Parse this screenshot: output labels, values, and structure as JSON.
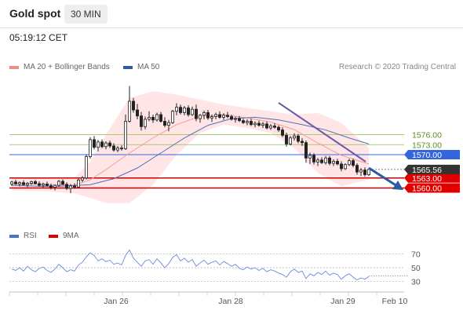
{
  "header": {
    "title": "Gold spot",
    "timeframe": "30 MIN",
    "time": "05:19:12 CET"
  },
  "legend": {
    "price_items": [
      {
        "label": "MA 20 + Bollinger Bands",
        "color": "#f28b86"
      },
      {
        "label": "MA 50",
        "color": "#2f5aa8"
      }
    ],
    "rsi_items": [
      {
        "label": "RSI",
        "color": "#4a74c9"
      },
      {
        "label": "9MA",
        "color": "#e00000"
      }
    ],
    "copyright": "Research © 2020 Trading Central"
  },
  "colors": {
    "support": "#cc0000",
    "pivot": "#3366dd",
    "resistance": "#8fbf4a",
    "current": "#333333",
    "candle": "#222222",
    "arrow": "#2a5aa0",
    "trendline": "#6a5aa8",
    "band": "#ffd0d0",
    "ma20": "#f29f9a",
    "ma50": "#5070b8",
    "rsi": "#6a8ad8",
    "rsi_ma": "#e00000"
  },
  "chart_data": {
    "type": "candlestick",
    "price_axis": {
      "min": 1554,
      "max": 1594
    },
    "current_price": {
      "value": 1565.56,
      "label": "1565.56"
    },
    "levels": [
      {
        "value": 1576.0,
        "label": "1576.00",
        "kind": "resistance"
      },
      {
        "value": 1573.0,
        "label": "1573.00",
        "kind": "resistance"
      },
      {
        "value": 1570.0,
        "label": "1570.00",
        "kind": "pivot"
      },
      {
        "value": 1563.0,
        "label": "1563.00",
        "kind": "support"
      },
      {
        "value": 1560.0,
        "label": "1560.00",
        "kind": "support"
      }
    ],
    "x_ticks": [
      "Jan 26",
      "Jan 28",
      "Jan 29",
      "Feb 10"
    ],
    "candles": [
      [
        1561.2,
        1562.2,
        1560.6,
        1561.8
      ],
      [
        1561.8,
        1562.5,
        1561.0,
        1561.2
      ],
      [
        1561.2,
        1562.0,
        1560.5,
        1561.6
      ],
      [
        1561.6,
        1562.3,
        1560.8,
        1561.0
      ],
      [
        1561.0,
        1561.8,
        1560.2,
        1561.4
      ],
      [
        1561.4,
        1562.2,
        1560.9,
        1561.9
      ],
      [
        1561.9,
        1562.4,
        1561.1,
        1561.3
      ],
      [
        1561.3,
        1562.0,
        1560.4,
        1560.8
      ],
      [
        1560.8,
        1561.6,
        1560.0,
        1561.2
      ],
      [
        1561.2,
        1561.9,
        1560.6,
        1560.7
      ],
      [
        1560.7,
        1561.3,
        1559.6,
        1560.2
      ],
      [
        1560.2,
        1561.0,
        1559.3,
        1560.8
      ],
      [
        1560.8,
        1562.4,
        1560.4,
        1562.0
      ],
      [
        1562.0,
        1562.6,
        1560.9,
        1561.1
      ],
      [
        1561.1,
        1561.7,
        1559.4,
        1559.9
      ],
      [
        1559.9,
        1561.2,
        1558.5,
        1560.6
      ],
      [
        1560.6,
        1561.4,
        1559.8,
        1560.3
      ],
      [
        1560.3,
        1562.8,
        1560.1,
        1562.4
      ],
      [
        1562.4,
        1563.6,
        1561.8,
        1563.0
      ],
      [
        1563.0,
        1570.0,
        1562.6,
        1569.4
      ],
      [
        1569.4,
        1575.2,
        1568.8,
        1574.5
      ],
      [
        1574.5,
        1575.6,
        1571.6,
        1572.2
      ],
      [
        1572.2,
        1574.4,
        1571.0,
        1573.8
      ],
      [
        1573.8,
        1574.6,
        1571.9,
        1572.4
      ],
      [
        1572.4,
        1574.0,
        1571.6,
        1573.5
      ],
      [
        1573.5,
        1574.2,
        1572.0,
        1572.6
      ],
      [
        1572.6,
        1573.4,
        1570.9,
        1571.4
      ],
      [
        1571.4,
        1572.6,
        1570.7,
        1572.0
      ],
      [
        1572.0,
        1572.8,
        1571.2,
        1571.8
      ],
      [
        1571.8,
        1582.0,
        1571.4,
        1580.0
      ],
      [
        1580.0,
        1590.6,
        1579.6,
        1586.0
      ],
      [
        1586.0,
        1587.0,
        1582.6,
        1583.4
      ],
      [
        1583.4,
        1585.2,
        1580.6,
        1581.6
      ],
      [
        1581.6,
        1582.8,
        1577.2,
        1578.4
      ],
      [
        1578.4,
        1581.4,
        1577.6,
        1580.6
      ],
      [
        1580.6,
        1583.0,
        1580.0,
        1581.2
      ],
      [
        1581.2,
        1582.0,
        1579.5,
        1580.4
      ],
      [
        1580.4,
        1582.6,
        1579.9,
        1582.0
      ],
      [
        1582.0,
        1582.8,
        1579.6,
        1580.0
      ],
      [
        1580.0,
        1581.2,
        1578.2,
        1578.8
      ],
      [
        1578.8,
        1580.4,
        1577.0,
        1579.6
      ],
      [
        1579.6,
        1583.4,
        1579.2,
        1583.0
      ],
      [
        1583.0,
        1585.4,
        1581.8,
        1584.2
      ],
      [
        1584.2,
        1585.0,
        1582.0,
        1582.6
      ],
      [
        1582.6,
        1584.6,
        1581.8,
        1584.0
      ],
      [
        1584.0,
        1584.8,
        1581.4,
        1582.0
      ],
      [
        1582.0,
        1584.4,
        1581.6,
        1583.6
      ],
      [
        1583.6,
        1585.0,
        1580.0,
        1580.8
      ],
      [
        1580.8,
        1582.2,
        1579.6,
        1581.8
      ],
      [
        1581.8,
        1583.2,
        1580.6,
        1582.6
      ],
      [
        1582.6,
        1583.4,
        1580.4,
        1581.0
      ],
      [
        1581.0,
        1582.0,
        1579.8,
        1581.4
      ],
      [
        1581.4,
        1582.6,
        1580.6,
        1582.0
      ],
      [
        1582.0,
        1583.0,
        1580.8,
        1581.2
      ],
      [
        1581.2,
        1582.4,
        1580.4,
        1581.8
      ],
      [
        1581.8,
        1582.8,
        1580.9,
        1581.4
      ],
      [
        1581.4,
        1582.0,
        1580.2,
        1580.6
      ],
      [
        1580.6,
        1581.4,
        1579.6,
        1580.8
      ],
      [
        1580.8,
        1581.6,
        1579.8,
        1580.2
      ],
      [
        1580.2,
        1580.8,
        1579.2,
        1579.6
      ],
      [
        1579.6,
        1580.6,
        1578.8,
        1580.0
      ],
      [
        1580.0,
        1580.8,
        1578.6,
        1579.0
      ],
      [
        1579.0,
        1580.0,
        1578.2,
        1579.4
      ],
      [
        1579.4,
        1580.2,
        1578.4,
        1578.8
      ],
      [
        1578.8,
        1579.8,
        1578.0,
        1579.2
      ],
      [
        1579.2,
        1579.9,
        1577.6,
        1578.0
      ],
      [
        1578.0,
        1579.2,
        1577.4,
        1578.6
      ],
      [
        1578.6,
        1579.4,
        1577.8,
        1578.2
      ],
      [
        1578.2,
        1578.8,
        1576.8,
        1577.4
      ],
      [
        1577.4,
        1578.2,
        1575.2,
        1575.8
      ],
      [
        1575.8,
        1576.6,
        1572.4,
        1573.2
      ],
      [
        1573.2,
        1575.6,
        1572.8,
        1575.0
      ],
      [
        1575.0,
        1576.4,
        1574.2,
        1575.6
      ],
      [
        1575.6,
        1576.2,
        1573.4,
        1574.0
      ],
      [
        1574.0,
        1575.0,
        1572.6,
        1573.6
      ],
      [
        1573.6,
        1574.2,
        1567.6,
        1569.0
      ],
      [
        1569.0,
        1570.6,
        1567.2,
        1569.8
      ],
      [
        1569.8,
        1570.4,
        1567.0,
        1567.8
      ],
      [
        1567.8,
        1569.0,
        1566.6,
        1568.4
      ],
      [
        1568.4,
        1569.2,
        1567.2,
        1567.6
      ],
      [
        1567.6,
        1569.6,
        1567.0,
        1569.0
      ],
      [
        1569.0,
        1569.6,
        1566.8,
        1567.4
      ],
      [
        1567.4,
        1568.6,
        1566.6,
        1568.0
      ],
      [
        1568.0,
        1568.8,
        1566.8,
        1567.2
      ],
      [
        1567.2,
        1568.0,
        1565.0,
        1565.8
      ],
      [
        1565.8,
        1567.4,
        1565.4,
        1567.0
      ],
      [
        1567.0,
        1568.8,
        1566.6,
        1568.2
      ],
      [
        1568.2,
        1568.8,
        1566.2,
        1566.8
      ],
      [
        1566.8,
        1567.4,
        1564.0,
        1564.8
      ],
      [
        1564.8,
        1566.0,
        1563.6,
        1565.4
      ],
      [
        1565.4,
        1566.2,
        1563.4,
        1564.0
      ],
      [
        1564.0,
        1566.0,
        1563.6,
        1565.56
      ]
    ],
    "ma20": [
      [
        0,
        1561.3
      ],
      [
        8,
        1561.1
      ],
      [
        16,
        1560.8
      ],
      [
        20,
        1562.5
      ],
      [
        24,
        1565.5
      ],
      [
        30,
        1570.5
      ],
      [
        36,
        1575.0
      ],
      [
        42,
        1579.0
      ],
      [
        48,
        1581.5
      ],
      [
        54,
        1582.0
      ],
      [
        60,
        1581.0
      ],
      [
        66,
        1579.8
      ],
      [
        72,
        1577.5
      ],
      [
        78,
        1573.5
      ],
      [
        84,
        1569.8
      ],
      [
        91,
        1567.2
      ]
    ],
    "bb_upper": [
      [
        0,
        1563.2
      ],
      [
        8,
        1562.8
      ],
      [
        16,
        1563.0
      ],
      [
        20,
        1568.0
      ],
      [
        24,
        1576.0
      ],
      [
        30,
        1587.0
      ],
      [
        36,
        1589.0
      ],
      [
        42,
        1588.0
      ],
      [
        48,
        1586.5
      ],
      [
        54,
        1585.0
      ],
      [
        60,
        1584.0
      ],
      [
        66,
        1583.0
      ],
      [
        72,
        1582.0
      ],
      [
        78,
        1582.5
      ],
      [
        84,
        1579.5
      ],
      [
        91,
        1572.0
      ]
    ],
    "bb_lower": [
      [
        0,
        1559.3
      ],
      [
        8,
        1559.0
      ],
      [
        16,
        1558.4
      ],
      [
        20,
        1557.0
      ],
      [
        24,
        1555.5
      ],
      [
        30,
        1555.5
      ],
      [
        36,
        1561.0
      ],
      [
        42,
        1570.0
      ],
      [
        48,
        1576.5
      ],
      [
        54,
        1579.0
      ],
      [
        60,
        1578.0
      ],
      [
        66,
        1576.5
      ],
      [
        72,
        1572.0
      ],
      [
        78,
        1564.5
      ],
      [
        84,
        1560.5
      ],
      [
        91,
        1562.5
      ]
    ],
    "ma50": [
      [
        0,
        1560.8
      ],
      [
        10,
        1560.4
      ],
      [
        20,
        1561.0
      ],
      [
        26,
        1562.8
      ],
      [
        32,
        1566.0
      ],
      [
        38,
        1570.5
      ],
      [
        44,
        1575.0
      ],
      [
        50,
        1578.8
      ],
      [
        56,
        1580.8
      ],
      [
        62,
        1581.2
      ],
      [
        68,
        1580.4
      ],
      [
        74,
        1579.0
      ],
      [
        80,
        1577.4
      ],
      [
        86,
        1575.0
      ],
      [
        91,
        1573.2
      ]
    ],
    "rsi_axis": {
      "min": 20,
      "max": 80,
      "ticks": [
        70,
        50,
        30
      ]
    },
    "rsi": [
      48,
      46,
      50,
      45,
      52,
      47,
      44,
      49,
      51,
      46,
      43,
      48,
      55,
      50,
      44,
      47,
      45,
      54,
      58,
      66,
      72,
      68,
      60,
      63,
      59,
      61,
      55,
      57,
      54,
      68,
      76,
      64,
      58,
      52,
      60,
      62,
      55,
      63,
      57,
      50,
      56,
      65,
      69,
      60,
      64,
      58,
      62,
      52,
      57,
      61,
      55,
      58,
      60,
      54,
      59,
      56,
      52,
      55,
      49,
      47,
      51,
      48,
      50,
      46,
      49,
      44,
      47,
      45,
      42,
      40,
      36,
      44,
      48,
      43,
      45,
      34,
      41,
      38,
      43,
      40,
      45,
      39,
      42,
      40,
      33,
      38,
      41,
      36,
      32,
      35,
      33,
      37
    ],
    "rsi_ma_dotted": [
      [
        91,
        38
      ],
      [
        101,
        38
      ]
    ]
  }
}
